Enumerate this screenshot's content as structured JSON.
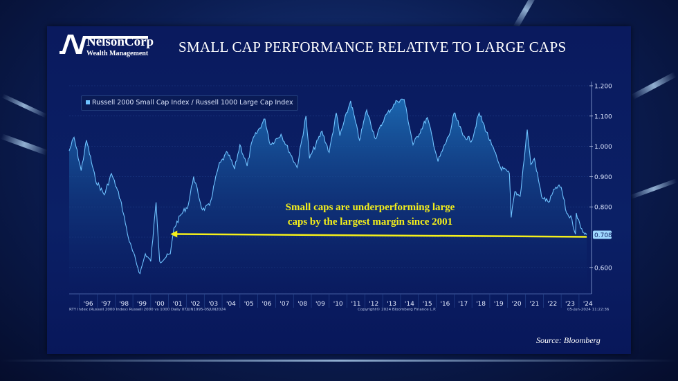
{
  "logo": {
    "name": "NelsonCorp",
    "subtitle": "Wealth Management"
  },
  "title": "SMALL CAP PERFORMANCE RELATIVE TO LARGE CAPS",
  "annotation": {
    "line1": "Small caps are underperforming large",
    "line2": "caps by the largest margin since 2001"
  },
  "source": "Source: Bloomberg",
  "footer": {
    "left": "RTY Index (Russell 2000 Index) Russell 2000 vs 1000  Daily 07JUN1995-05JUN2024",
    "center": "Copyright© 2024 Bloomberg Finance L.P.",
    "right": "05-Jun-2024 11:22:36"
  },
  "colors": {
    "line": "#6fc3ff",
    "annotation": "#f5f01a",
    "panel": "#0b2066"
  },
  "chart_data": {
    "type": "area",
    "legend": [
      "Russell 2000 Small Cap Index / Russell 1000 Large Cap Index"
    ],
    "legend_placement": "top-left",
    "grid": true,
    "xlim": [
      1995.43,
      2024.43
    ],
    "ylim": [
      0.55,
      1.21
    ],
    "y_axis_side": "right",
    "yticks": [
      "1.200",
      "1.100",
      "1.000",
      "0.900",
      "0.800",
      "0.600"
    ],
    "xticks": [
      "'96",
      "'97",
      "'98",
      "'99",
      "'00",
      "'01",
      "'02",
      "'03",
      "'04",
      "'05",
      "'06",
      "'07",
      "'08",
      "'09",
      "'10",
      "'11",
      "'12",
      "'13",
      "'14",
      "'15",
      "'16",
      "'17",
      "'18",
      "'19",
      "'20",
      "'21",
      "'22",
      "'23",
      "'24"
    ],
    "last_value_label": "0.708",
    "reference_line": {
      "value": 0.708,
      "from": 2001.1,
      "to": 2024.43,
      "style": "yellow arrow"
    },
    "series": [
      {
        "name": "Russell 2000 Small Cap Index / Russell 1000 Large Cap Index",
        "x": [
          1995.43,
          1995.7,
          1996.1,
          1996.4,
          1996.9,
          1997.4,
          1997.8,
          1998.3,
          1998.8,
          1999.4,
          1999.7,
          2000.0,
          2000.3,
          2000.5,
          2001.1,
          2001.3,
          2001.7,
          2002.1,
          2002.4,
          2002.9,
          2003.3,
          2003.8,
          2004.3,
          2004.7,
          2005.0,
          2005.4,
          2005.7,
          2006.4,
          2006.7,
          2007.3,
          2008.2,
          2008.7,
          2008.9,
          2009.6,
          2010.0,
          2010.4,
          2010.6,
          2011.2,
          2011.7,
          2012.1,
          2012.6,
          2013.1,
          2013.8,
          2014.2,
          2014.7,
          2015.5,
          2016.1,
          2016.8,
          2017.0,
          2017.5,
          2018.0,
          2018.4,
          2019.1,
          2019.6,
          2020.1,
          2020.2,
          2020.4,
          2020.7,
          2021.1,
          2021.3,
          2021.5,
          2021.9,
          2022.3,
          2022.7,
          2023.0,
          2023.3,
          2023.6,
          2023.8,
          2023.85,
          2024.1,
          2024.43
        ],
        "y": [
          0.985,
          1.03,
          0.92,
          1.02,
          0.89,
          0.84,
          0.91,
          0.825,
          0.685,
          0.58,
          0.645,
          0.62,
          0.815,
          0.62,
          0.645,
          0.73,
          0.775,
          0.805,
          0.9,
          0.79,
          0.805,
          0.935,
          0.98,
          0.925,
          1.005,
          0.935,
          1.02,
          1.09,
          1.005,
          1.04,
          0.93,
          1.1,
          0.96,
          1.05,
          0.98,
          1.11,
          1.035,
          1.15,
          1.02,
          1.12,
          1.025,
          1.095,
          1.15,
          1.155,
          1.005,
          1.095,
          0.95,
          1.05,
          1.11,
          1.035,
          1.02,
          1.11,
          1.005,
          0.93,
          0.91,
          0.765,
          0.85,
          0.835,
          1.055,
          0.94,
          0.96,
          0.835,
          0.815,
          0.865,
          0.865,
          0.78,
          0.76,
          0.71,
          0.78,
          0.73,
          0.708
        ]
      }
    ]
  }
}
